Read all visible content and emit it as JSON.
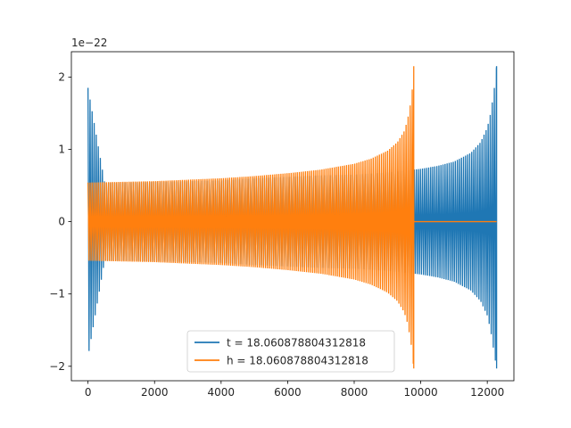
{
  "chart_data": {
    "type": "line",
    "title": "",
    "xlabel": "",
    "ylabel": "",
    "y_scale_label": "1e−22",
    "xlim": [
      -500,
      12800
    ],
    "ylim": [
      -2.2,
      2.35
    ],
    "x_ticks": [
      {
        "value": 0,
        "label": "0"
      },
      {
        "value": 2000,
        "label": "2000"
      },
      {
        "value": 4000,
        "label": "4000"
      },
      {
        "value": 6000,
        "label": "6000"
      },
      {
        "value": 8000,
        "label": "8000"
      },
      {
        "value": 10000,
        "label": "10000"
      },
      {
        "value": 12000,
        "label": "12000"
      }
    ],
    "y_ticks": [
      {
        "value": -2,
        "label": "−2"
      },
      {
        "value": -1,
        "label": "−1"
      },
      {
        "value": 0,
        "label": "0"
      },
      {
        "value": 1,
        "label": "1"
      },
      {
        "value": 2,
        "label": "2"
      }
    ],
    "grid": false,
    "legend_position": "lower-center",
    "series": [
      {
        "name": "t = 18.060878804312818",
        "color": "#1f77b4",
        "envelope": {
          "x": [
            0,
            500,
            1000,
            2000,
            3000,
            4000,
            5000,
            6000,
            7000,
            8000,
            9000,
            9800,
            10000,
            10500,
            11000,
            11500,
            11800,
            12000,
            12100,
            12200,
            12280
          ],
          "upper": [
            1.85,
            0.54,
            0.54,
            0.55,
            0.56,
            0.57,
            0.6,
            0.62,
            0.64,
            0.65,
            0.68,
            0.72,
            0.73,
            0.77,
            0.83,
            0.95,
            1.1,
            1.3,
            1.5,
            1.8,
            2.15
          ],
          "lower": [
            -1.87,
            -0.54,
            -0.54,
            -0.55,
            -0.56,
            -0.57,
            -0.6,
            -0.62,
            -0.64,
            -0.65,
            -0.68,
            -0.72,
            -0.73,
            -0.77,
            -0.83,
            -0.95,
            -1.1,
            -1.3,
            -1.5,
            -1.8,
            -2.03
          ]
        }
      },
      {
        "name": "h = 18.060878804312818",
        "color": "#ff7f0e",
        "envelope": {
          "x": [
            0,
            1000,
            2000,
            3000,
            4000,
            5000,
            6000,
            7000,
            8000,
            8500,
            9000,
            9300,
            9500,
            9600,
            9700,
            9750,
            9790
          ],
          "upper": [
            0.54,
            0.55,
            0.56,
            0.58,
            0.6,
            0.63,
            0.67,
            0.72,
            0.8,
            0.87,
            0.98,
            1.1,
            1.25,
            1.4,
            1.65,
            1.85,
            2.15
          ],
          "lower": [
            -0.54,
            -0.55,
            -0.56,
            -0.58,
            -0.6,
            -0.63,
            -0.67,
            -0.72,
            -0.8,
            -0.87,
            -0.98,
            -1.1,
            -1.25,
            -1.4,
            -1.65,
            -1.85,
            -2.03
          ]
        },
        "flat_after": {
          "x_start": 9790,
          "x_end": 12280,
          "value": 0
        }
      }
    ]
  }
}
